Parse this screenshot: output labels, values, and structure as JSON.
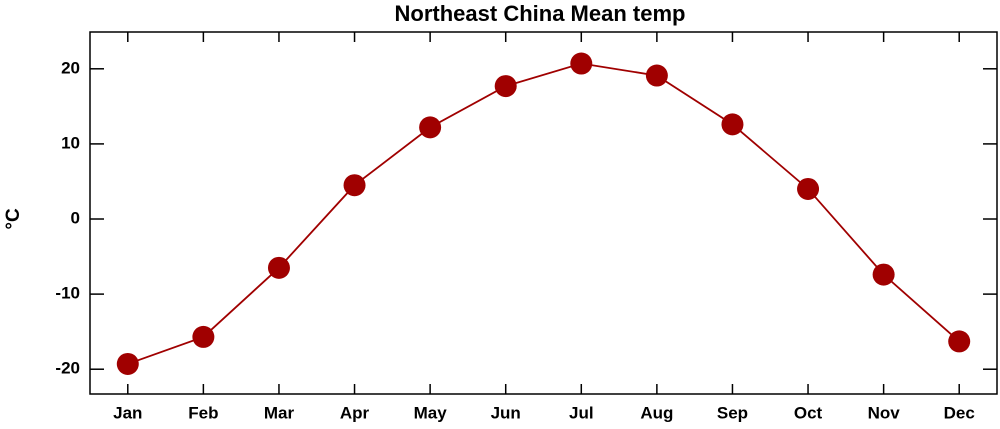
{
  "chart_data": {
    "type": "line",
    "title": "Northeast China Mean temp",
    "y_label": "°C",
    "categories": [
      "Jan",
      "Feb",
      "Mar",
      "Apr",
      "May",
      "Jun",
      "Jul",
      "Aug",
      "Sep",
      "Oct",
      "Nov",
      "Dec"
    ],
    "series": [
      {
        "name": "Mean temp",
        "color": "#a00000",
        "values": [
          -19.3,
          -15.7,
          -6.5,
          4.5,
          12.2,
          17.7,
          20.7,
          19.1,
          12.6,
          4.0,
          -7.4,
          -16.3
        ]
      }
    ],
    "ylim": [
      -23.3,
      24.9
    ],
    "yticks": [
      -20,
      -10,
      0,
      10,
      20
    ],
    "grid": false
  }
}
